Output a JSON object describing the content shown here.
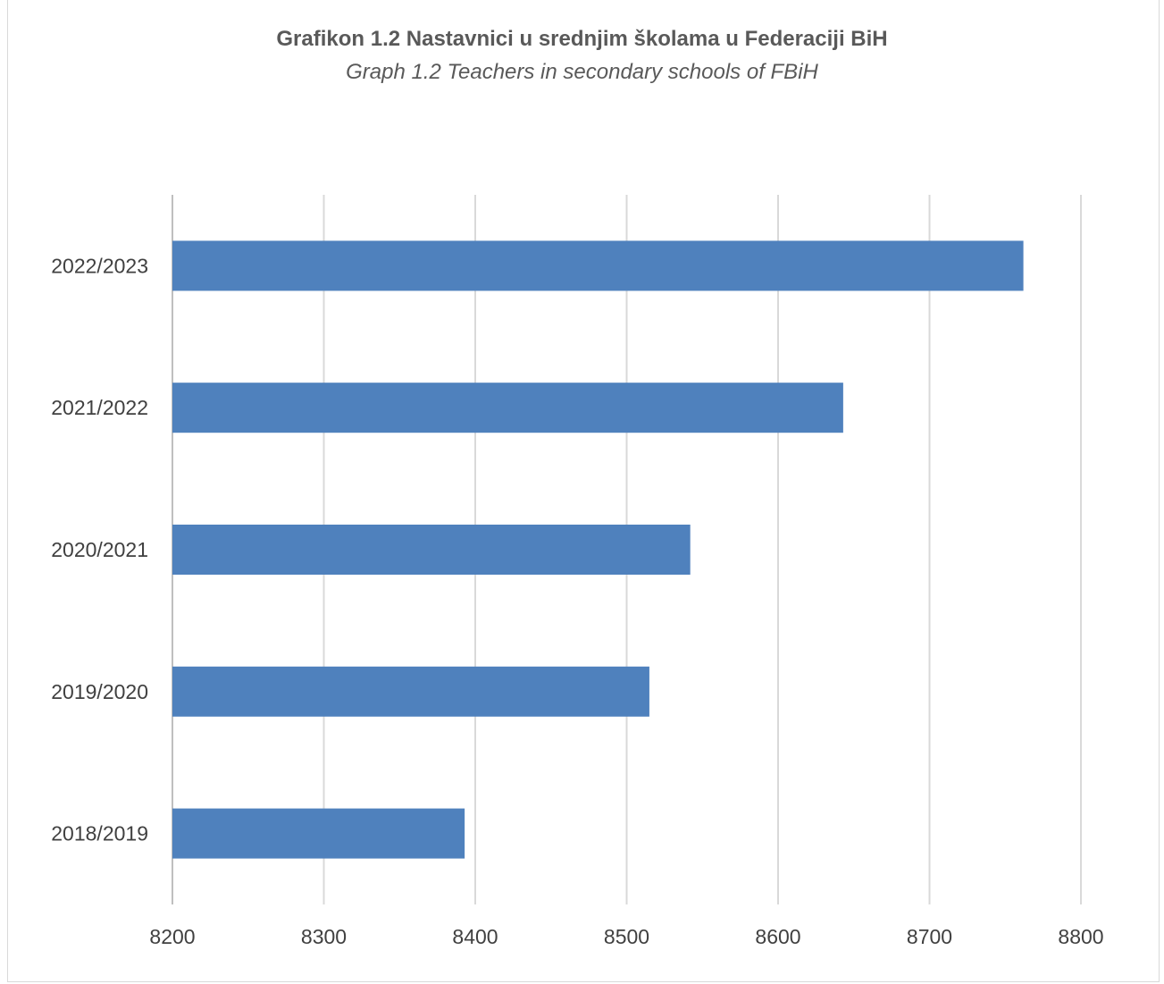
{
  "chart_data": {
    "type": "bar",
    "orientation": "horizontal",
    "title": "Grafikon 1.2 Nastavnici u srednjim školama u Federaciji BiH",
    "subtitle": "Graph 1.2 Teachers in secondary schools of FBiH",
    "categories": [
      "2022/2023",
      "2021/2022",
      "2020/2021",
      "2019/2020",
      "2018/2019"
    ],
    "values": [
      8762,
      8643,
      8542,
      8515,
      8393
    ],
    "xlim": [
      8200,
      8800
    ],
    "xticks": [
      "8200",
      "8300",
      "8400",
      "8500",
      "8600",
      "8700",
      "8800"
    ],
    "grid": "vertical",
    "bar_color": "#4f81bd",
    "grid_color": "#d9d9d9",
    "legend": "none"
  }
}
